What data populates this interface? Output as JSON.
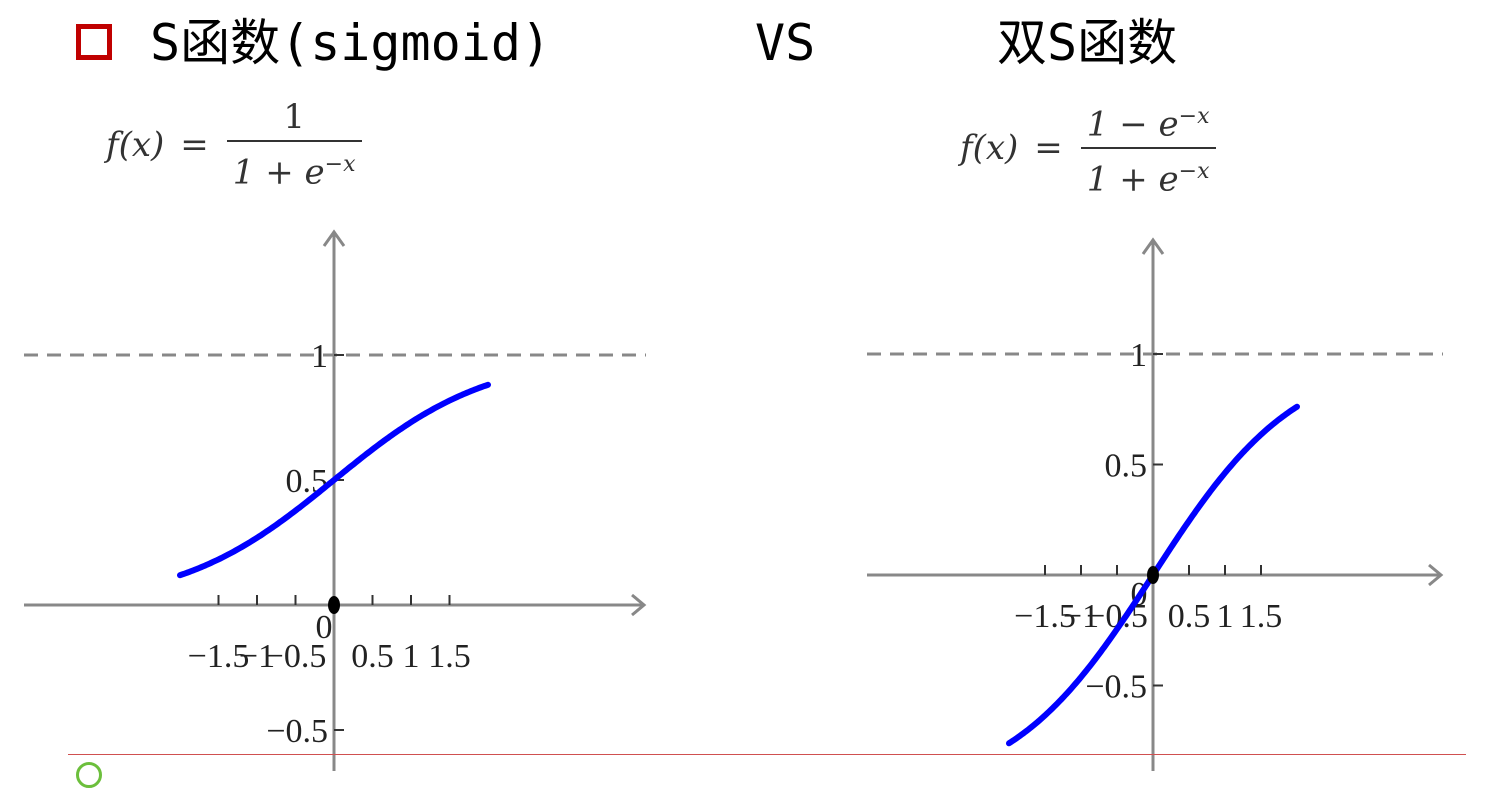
{
  "title": {
    "left": "S函数(sigmoid)",
    "vs": "VS",
    "right": "双S函数"
  },
  "colors": {
    "bullet": "#c00000",
    "curve": "#0000ff",
    "axis": "#888888",
    "asymptote": "#888888",
    "divider": "#d05050"
  },
  "icons": {
    "bullet": "square-bullet-icon",
    "bottom": "circle-icon"
  },
  "formula_left": {
    "lhs": "f(x)",
    "eq": "=",
    "numerator": "1",
    "denominator_base": "1 + e",
    "denominator_exp": "−x"
  },
  "formula_right": {
    "lhs": "f(x)",
    "eq": "=",
    "numerator_base": "1 − e",
    "numerator_exp": "−x",
    "denominator_base": "1 + e",
    "denominator_exp": "−x"
  },
  "chart_data": [
    {
      "type": "line",
      "function": "sigmoid",
      "xlim": [
        -2,
        2
      ],
      "ylim": [
        -0.85,
        1.55
      ],
      "asymptotes": [
        1
      ],
      "x_ticks": [
        -1.5,
        -1,
        -0.5,
        0.5,
        1,
        1.5
      ],
      "x_tick_labels": [
        "−1.5",
        "−1",
        "−0.5",
        "0.5",
        "1",
        "1.5"
      ],
      "y_ticks": [
        1,
        0.5,
        -0.5
      ],
      "y_tick_labels": [
        "1",
        "0.5",
        "−0.5"
      ],
      "origin_label": "0",
      "points": [
        {
          "x": -2,
          "y": 0.119
        },
        {
          "x": -1.5,
          "y": 0.182
        },
        {
          "x": -1,
          "y": 0.269
        },
        {
          "x": -0.5,
          "y": 0.378
        },
        {
          "x": 0,
          "y": 0.5
        },
        {
          "x": 0.5,
          "y": 0.622
        },
        {
          "x": 1,
          "y": 0.731
        },
        {
          "x": 1.5,
          "y": 0.818
        },
        {
          "x": 2,
          "y": 0.881
        }
      ]
    },
    {
      "type": "line",
      "function": "double-sigmoid",
      "xlim": [
        -2,
        2
      ],
      "ylim": [
        -1.05,
        1.55
      ],
      "asymptotes": [
        1
      ],
      "x_ticks": [
        -1.5,
        -1,
        -0.5,
        0.5,
        1,
        1.5
      ],
      "x_tick_labels": [
        "−1.5",
        "−1",
        "−0.5",
        "0.5",
        "1",
        "1.5"
      ],
      "y_ticks": [
        1,
        0.5,
        -0.5
      ],
      "y_tick_labels": [
        "1",
        "0.5",
        "−0.5"
      ],
      "origin_label": "0",
      "points": [
        {
          "x": -2,
          "y": -0.762
        },
        {
          "x": -1.5,
          "y": -0.635
        },
        {
          "x": -1,
          "y": -0.462
        },
        {
          "x": -0.5,
          "y": -0.245
        },
        {
          "x": 0,
          "y": 0
        },
        {
          "x": 0.5,
          "y": 0.245
        },
        {
          "x": 1,
          "y": 0.462
        },
        {
          "x": 1.5,
          "y": 0.635
        },
        {
          "x": 2,
          "y": 0.762
        }
      ]
    }
  ]
}
